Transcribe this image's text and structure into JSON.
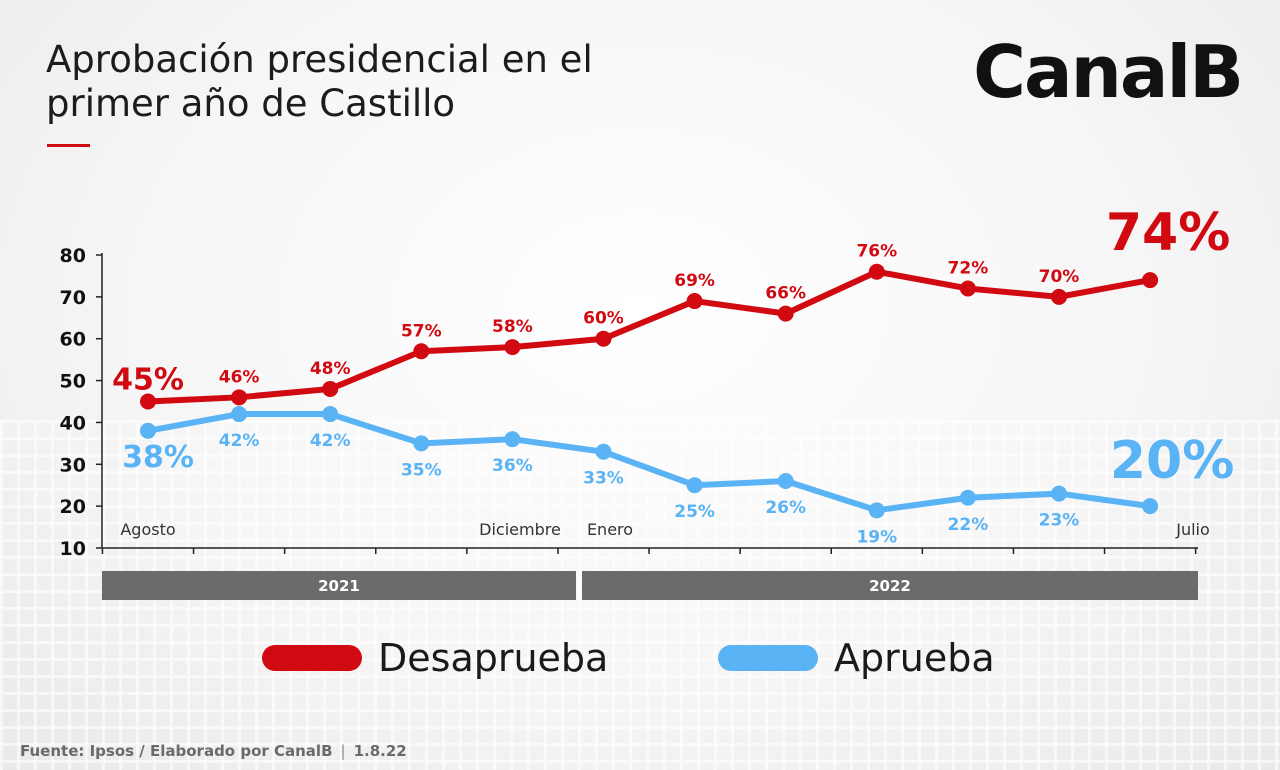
{
  "header": {
    "title_line1": "Aprobación presidencial en el",
    "title_line2": "primer año de Castillo",
    "brand": "CanalB"
  },
  "colors": {
    "desaprueba": "#d10a11",
    "aprueba": "#5ab3f5",
    "axis": "#222222",
    "year_bar": "#6b6b6b"
  },
  "chart_data": {
    "type": "line",
    "title": "Aprobación presidencial en el primer año de Castillo",
    "ylim": [
      10,
      80
    ],
    "yticks": [
      10,
      20,
      30,
      40,
      50,
      60,
      70,
      80
    ],
    "x_month_labels": [
      "Agosto",
      "Diciembre",
      "Enero",
      "Julio"
    ],
    "x_month_label_points": [
      0,
      4,
      5,
      11
    ],
    "year_labels": [
      "2021",
      "2022"
    ],
    "year_spans": [
      [
        0,
        4
      ],
      [
        5,
        11
      ]
    ],
    "series": [
      {
        "name": "Desaprueba",
        "values": [
          45,
          46,
          48,
          57,
          58,
          60,
          69,
          66,
          76,
          72,
          70,
          74
        ],
        "labels": [
          "45%",
          "46%",
          "48%",
          "57%",
          "58%",
          "60%",
          "69%",
          "66%",
          "76%",
          "72%",
          "70%",
          "74%"
        ]
      },
      {
        "name": "Aprueba",
        "values": [
          38,
          42,
          42,
          35,
          36,
          33,
          25,
          26,
          19,
          22,
          23,
          20
        ],
        "labels": [
          "38%",
          "42%",
          "42%",
          "35%",
          "36%",
          "33%",
          "25%",
          "26%",
          "19%",
          "22%",
          "23%",
          "20%"
        ]
      }
    ],
    "legend": "bottom",
    "grid": false
  },
  "legend": {
    "desaprueba_label": "Desaprueba",
    "aprueba_label": "Aprueba"
  },
  "footer": {
    "source": "Fuente: Ipsos / Elaborado por CanalB",
    "date": "1.8.22"
  }
}
